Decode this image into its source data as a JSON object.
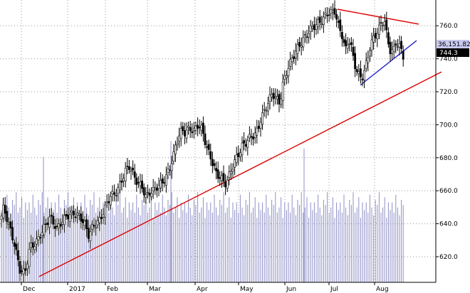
{
  "chart_data": {
    "type": "candlestick",
    "title": "",
    "xlabel": "",
    "ylabel": "",
    "y_axis_side": "right",
    "ylim": [
      603,
      775
    ],
    "y_ticks": [
      "620.0",
      "640.0",
      "660.0",
      "680.0",
      "700.0",
      "720.0",
      "740.0",
      "760.0"
    ],
    "y_tick_values": [
      620,
      640,
      660,
      680,
      700,
      720,
      740,
      760
    ],
    "x_month_labels": [
      "Dec",
      "2017",
      "Feb",
      "Mar",
      "Apr",
      "May",
      "Jun",
      "Jul",
      "Aug"
    ],
    "grid": "dotted",
    "last_price_label": "744.3",
    "volume_label": "36,151.82",
    "colors": {
      "bullish_body": "#ffffff",
      "bearish_body": "#000000",
      "candle_outline": "#000000",
      "volume": "#8f8fc7",
      "support_line": "#dd0000",
      "resistance_line": "#dd0000",
      "channel_line": "#2222cc",
      "price_tag_bg": "#000000",
      "volume_tag_bg": "#c9c9ef"
    },
    "anchors": [
      [
        0,
        641
      ],
      [
        5,
        650
      ],
      [
        12,
        640
      ],
      [
        20,
        628
      ],
      [
        28,
        612
      ],
      [
        35,
        610
      ],
      [
        42,
        626
      ],
      [
        50,
        628
      ],
      [
        60,
        636
      ],
      [
        70,
        644
      ],
      [
        80,
        637
      ],
      [
        88,
        642
      ],
      [
        95,
        645
      ],
      [
        103,
        646
      ],
      [
        110,
        645
      ],
      [
        118,
        641
      ],
      [
        124,
        633
      ],
      [
        130,
        638
      ],
      [
        140,
        642
      ],
      [
        148,
        650
      ],
      [
        155,
        657
      ],
      [
        162,
        658
      ],
      [
        170,
        665
      ],
      [
        176,
        672
      ],
      [
        182,
        675
      ],
      [
        186,
        671
      ],
      [
        190,
        667
      ],
      [
        195,
        664
      ],
      [
        200,
        662
      ],
      [
        205,
        656
      ],
      [
        210,
        659
      ],
      [
        215,
        660
      ],
      [
        222,
        663
      ],
      [
        228,
        665
      ],
      [
        234,
        669
      ],
      [
        240,
        676
      ],
      [
        244,
        682
      ],
      [
        248,
        690
      ],
      [
        252,
        694
      ],
      [
        256,
        697
      ],
      [
        260,
        695
      ],
      [
        266,
        698
      ],
      [
        272,
        696
      ],
      [
        278,
        700
      ],
      [
        284,
        697
      ],
      [
        288,
        690
      ],
      [
        292,
        684
      ],
      [
        296,
        680
      ],
      [
        300,
        675
      ],
      [
        304,
        670
      ],
      [
        310,
        668
      ],
      [
        316,
        664
      ],
      [
        320,
        667
      ],
      [
        324,
        672
      ],
      [
        328,
        676
      ],
      [
        332,
        680
      ],
      [
        336,
        683
      ],
      [
        340,
        687
      ],
      [
        345,
        689
      ],
      [
        350,
        692
      ],
      [
        358,
        694
      ],
      [
        362,
        697
      ],
      [
        366,
        703
      ],
      [
        370,
        707
      ],
      [
        376,
        713
      ],
      [
        382,
        719
      ],
      [
        388,
        716
      ],
      [
        393,
        713
      ],
      [
        397,
        724
      ],
      [
        401,
        730
      ],
      [
        405,
        735
      ],
      [
        410,
        740
      ],
      [
        415,
        744
      ],
      [
        420,
        748
      ],
      [
        425,
        751
      ],
      [
        430,
        754
      ],
      [
        436,
        758
      ],
      [
        442,
        760
      ],
      [
        448,
        762
      ],
      [
        454,
        764
      ],
      [
        460,
        768
      ],
      [
        466,
        768
      ],
      [
        470,
        769
      ],
      [
        475,
        760
      ],
      [
        480,
        755
      ],
      [
        485,
        745
      ],
      [
        490,
        752
      ],
      [
        494,
        746
      ],
      [
        497,
        738
      ],
      [
        500,
        734
      ],
      [
        504,
        730
      ],
      [
        508,
        728
      ],
      [
        512,
        733
      ],
      [
        516,
        740
      ],
      [
        520,
        748
      ],
      [
        524,
        752
      ],
      [
        528,
        755
      ],
      [
        532,
        758
      ],
      [
        536,
        762
      ],
      [
        540,
        763
      ],
      [
        544,
        752
      ],
      [
        548,
        745
      ],
      [
        552,
        744
      ],
      [
        556,
        750
      ],
      [
        560,
        748
      ],
      [
        564,
        745
      ],
      [
        566,
        742
      ],
      [
        568,
        740
      ]
    ],
    "volume_pattern": [
      0.55,
      0.7,
      0.5,
      0.85,
      0.6,
      0.45,
      0.75,
      0.65,
      0.9,
      0.5,
      0.6,
      0.8,
      0.4,
      0.7
    ],
    "volume_spikes": [
      {
        "x": 61,
        "frac": 0.88
      },
      {
        "x": 240,
        "frac": 1.05
      },
      {
        "x": 427,
        "frac": 0.97
      }
    ],
    "trendlines": [
      {
        "name": "support",
        "from": [
          55,
          608
        ],
        "to": [
          620,
          732
        ]
      },
      {
        "name": "resistance",
        "from": [
          474,
          770
        ],
        "to": [
          588,
          761
        ]
      },
      {
        "name": "channel",
        "from": [
          506,
          724
        ],
        "to": [
          585,
          751
        ]
      }
    ]
  }
}
